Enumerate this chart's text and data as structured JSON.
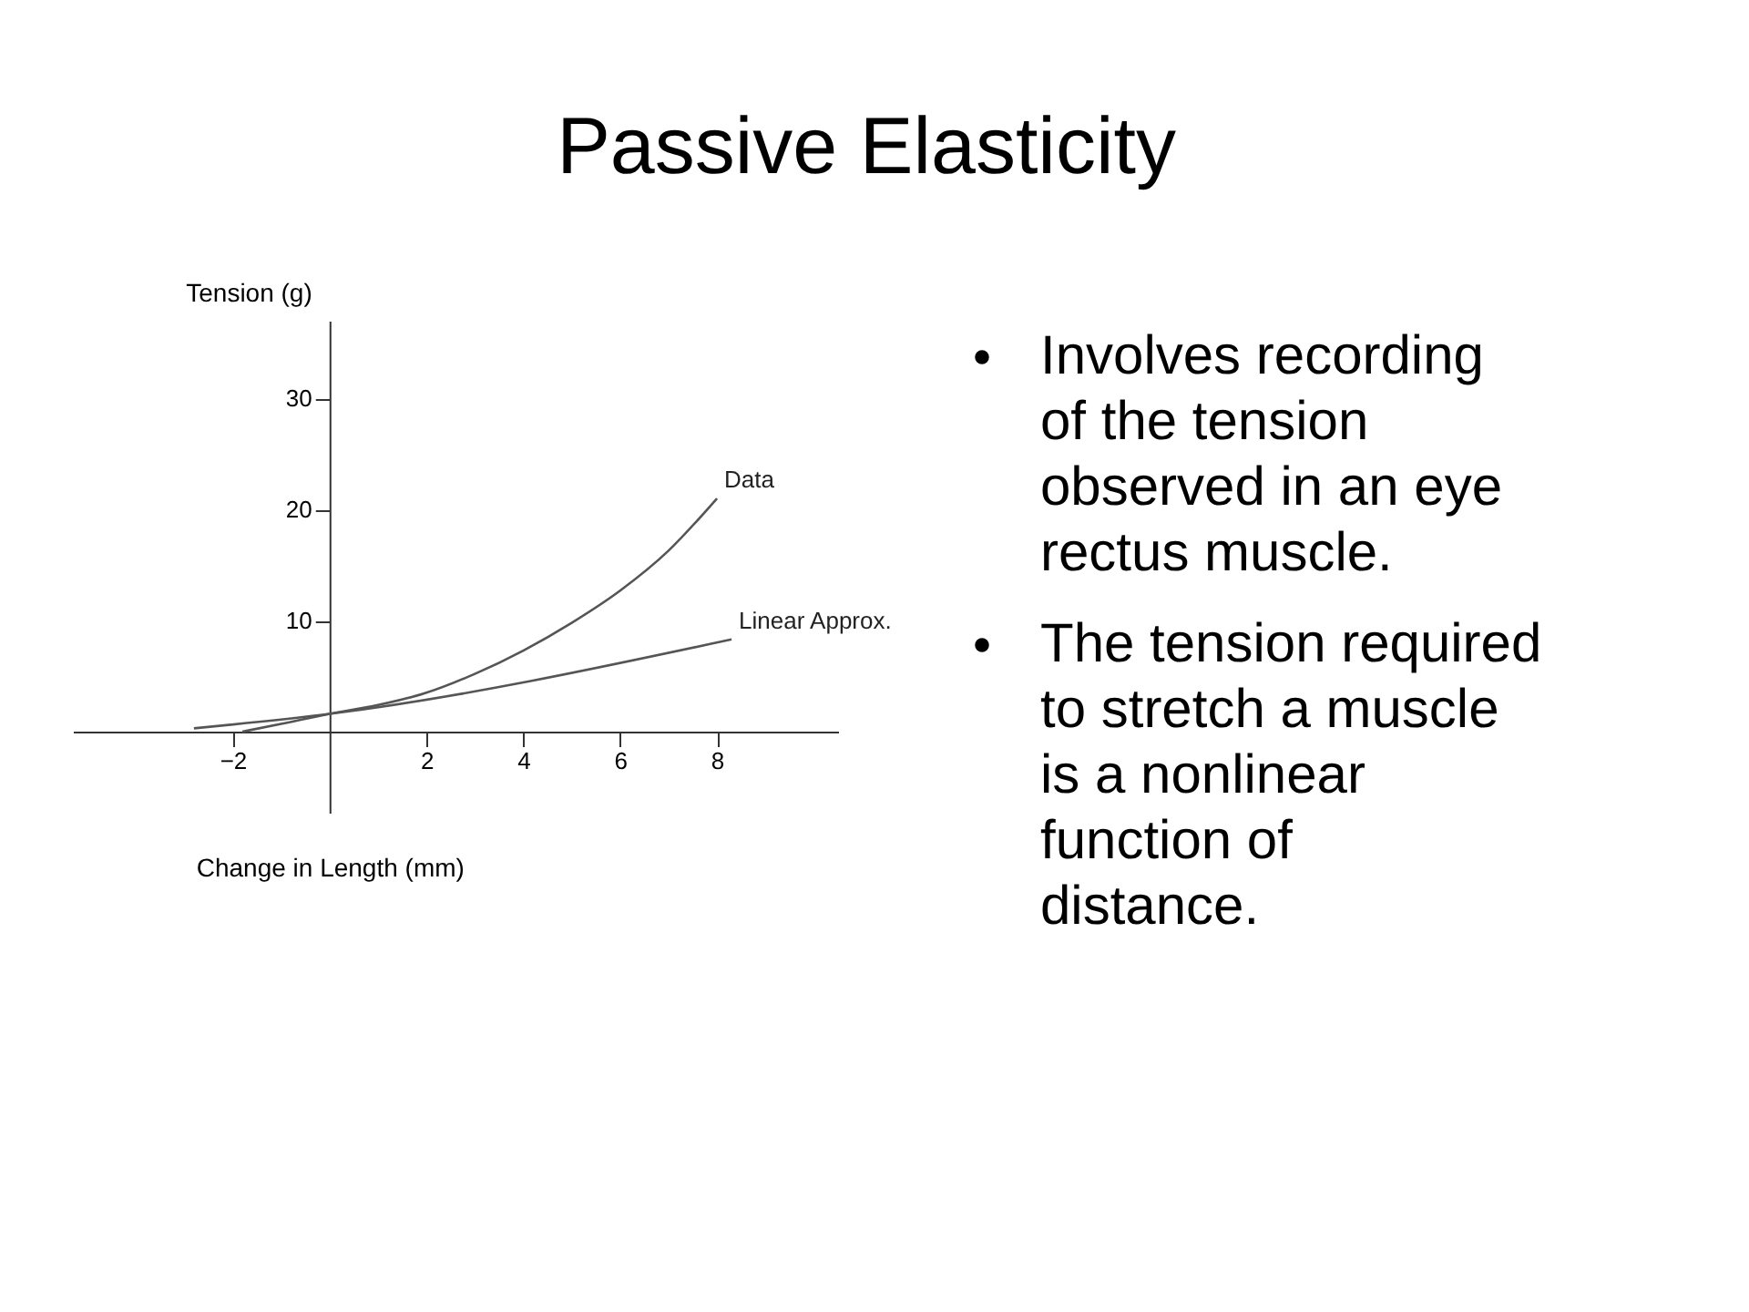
{
  "chart_data": {
    "type": "line",
    "title": "Passive Elasticity",
    "xlabel": "Change in Length (mm)",
    "ylabel": "Tension (g)",
    "xlim": [
      -5.3,
      10.5
    ],
    "ylim": [
      -7.3,
      37
    ],
    "xticks": [
      -2,
      2,
      4,
      6,
      8
    ],
    "yticks": [
      10,
      20,
      30
    ],
    "grid": false,
    "series": [
      {
        "name": "Data",
        "color": "#555555",
        "x": [
          -1.8,
          -1,
          0,
          1,
          2,
          3,
          4,
          5,
          6,
          7,
          8
        ],
        "values": [
          0,
          0.7,
          1.6,
          2.4,
          3.5,
          5.2,
          7.3,
          9.8,
          12.7,
          16.3,
          21
        ]
      },
      {
        "name": "Linear Approx.",
        "color": "#555555",
        "x": [
          -2.8,
          0,
          8.3
        ],
        "values": [
          0.3,
          1.6,
          8.3
        ]
      }
    ],
    "annotations": [
      "Involves recording of the tension observed in an eye rectus muscle.",
      "The tension required to stretch a muscle is a nonlinear function of distance."
    ]
  }
}
